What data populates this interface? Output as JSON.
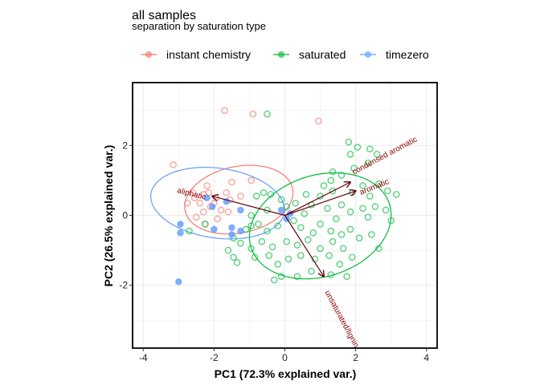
{
  "chart_data": {
    "type": "scatter",
    "title": "all samples",
    "subtitle": "separation by saturation type",
    "xlabel": "PC1 (72.3% explained var.)",
    "ylabel": "PC2 (26.5% explained var.)",
    "xlim": [
      -4.3,
      4.3
    ],
    "ylim": [
      -3.8,
      3.8
    ],
    "xticks": [
      -4,
      -2,
      0,
      2,
      4
    ],
    "yticks": [
      -2,
      0,
      2
    ],
    "grid": true,
    "legend_position": "top",
    "colors": {
      "instant chemistry": "#f8766d",
      "saturated": "#00ba38",
      "timezero": "#619cff",
      "arrows": "#67000d"
    },
    "series": [
      {
        "name": "instant chemistry",
        "color": "#f8766d",
        "ellipse": {
          "cx": -1.3,
          "cy": 0.45,
          "rx": 1.55,
          "ry": 0.95,
          "angle": 12
        },
        "points": [
          [
            -1.7,
            3.0
          ],
          [
            -0.9,
            2.9
          ],
          [
            0.95,
            2.7
          ],
          [
            -3.15,
            1.45
          ],
          [
            -2.2,
            0.85
          ],
          [
            -1.5,
            0.95
          ],
          [
            -1.25,
            0.55
          ],
          [
            -0.95,
            1.0
          ],
          [
            -2.15,
            0.65
          ],
          [
            -2.3,
            0.6
          ],
          [
            -2.55,
            0.5
          ],
          [
            -1.95,
            0.5
          ],
          [
            -1.55,
            0.45
          ],
          [
            -2.75,
            0.35
          ],
          [
            -2.4,
            0.35
          ],
          [
            -2.1,
            0.25
          ],
          [
            -1.8,
            0.15
          ],
          [
            -2.3,
            0.1
          ],
          [
            -2.5,
            -0.05
          ],
          [
            -1.9,
            -0.1
          ],
          [
            -2.25,
            -0.25
          ],
          [
            -1.6,
            0.1
          ],
          [
            -2.6,
            0.65
          ],
          [
            -2.0,
            0.35
          ],
          [
            -1.65,
            0.65
          ]
        ]
      },
      {
        "name": "saturated",
        "color": "#00ba38",
        "ellipse": {
          "cx": 1.0,
          "cy": -0.3,
          "rx": 2.05,
          "ry": 1.45,
          "angle": 18
        },
        "points": [
          [
            -0.5,
            2.9
          ],
          [
            1.8,
            2.1
          ],
          [
            2.05,
            1.95
          ],
          [
            2.4,
            1.9
          ],
          [
            1.85,
            1.75
          ],
          [
            1.95,
            1.35
          ],
          [
            2.35,
            1.5
          ],
          [
            2.6,
            1.75
          ],
          [
            1.35,
            1.25
          ],
          [
            1.6,
            1.15
          ],
          [
            1.3,
            1.0
          ],
          [
            1.1,
            0.85
          ],
          [
            2.2,
            0.85
          ],
          [
            2.65,
            0.9
          ],
          [
            1.35,
            0.7
          ],
          [
            0.6,
            0.6
          ],
          [
            1.0,
            0.55
          ],
          [
            1.9,
            0.65
          ],
          [
            2.4,
            0.55
          ],
          [
            2.9,
            0.7
          ],
          [
            3.15,
            0.6
          ],
          [
            2.55,
            0.25
          ],
          [
            2.2,
            0.2
          ],
          [
            1.6,
            0.3
          ],
          [
            1.2,
            0.2
          ],
          [
            0.3,
            0.35
          ],
          [
            0.75,
            0.3
          ],
          [
            1.85,
            0.1
          ],
          [
            2.35,
            -0.05
          ],
          [
            2.85,
            0.15
          ],
          [
            3.0,
            -0.15
          ],
          [
            -0.6,
            0.65
          ],
          [
            -0.8,
            0.55
          ],
          [
            -0.4,
            0.6
          ],
          [
            -0.1,
            0.45
          ],
          [
            0.05,
            0.25
          ],
          [
            -0.5,
            0.15
          ],
          [
            -0.95,
            0.0
          ],
          [
            -0.75,
            -0.25
          ],
          [
            -1.1,
            -0.4
          ],
          [
            -0.5,
            -0.45
          ],
          [
            -0.2,
            -0.3
          ],
          [
            0.25,
            -0.15
          ],
          [
            0.45,
            -0.35
          ],
          [
            0.8,
            -0.5
          ],
          [
            1.0,
            -0.25
          ],
          [
            1.3,
            -0.45
          ],
          [
            1.45,
            -0.1
          ],
          [
            1.6,
            -0.55
          ],
          [
            1.85,
            -0.4
          ],
          [
            2.1,
            -0.65
          ],
          [
            2.45,
            -0.55
          ],
          [
            2.65,
            -0.95
          ],
          [
            1.65,
            -0.95
          ],
          [
            1.35,
            -0.75
          ],
          [
            1.0,
            -0.95
          ],
          [
            0.65,
            -0.7
          ],
          [
            0.35,
            -0.85
          ],
          [
            0.05,
            -0.75
          ],
          [
            -0.35,
            -0.9
          ],
          [
            -0.65,
            -0.75
          ],
          [
            -0.95,
            -0.95
          ],
          [
            -1.25,
            -0.8
          ],
          [
            -1.45,
            -0.65
          ],
          [
            -1.6,
            -1.0
          ],
          [
            -1.35,
            -1.35
          ],
          [
            -0.85,
            -1.2
          ],
          [
            -0.45,
            -1.15
          ],
          [
            -0.2,
            -1.4
          ],
          [
            0.1,
            -1.25
          ],
          [
            0.45,
            -1.15
          ],
          [
            0.85,
            -1.25
          ],
          [
            1.25,
            -1.15
          ],
          [
            1.55,
            -1.4
          ],
          [
            1.9,
            -1.2
          ],
          [
            1.3,
            -1.7
          ],
          [
            1.75,
            -1.75
          ],
          [
            0.75,
            -1.6
          ],
          [
            0.35,
            -1.75
          ],
          [
            -0.1,
            -1.75
          ],
          [
            -0.3,
            -1.85
          ],
          [
            -1.45,
            -1.2
          ],
          [
            -2.7,
            -0.45
          ],
          [
            -2.25,
            -0.25
          ],
          [
            -0.95,
            -0.3
          ],
          [
            0.55,
            0.05
          ]
        ]
      },
      {
        "name": "timezero",
        "color": "#619cff",
        "ellipse": {
          "cx": -1.9,
          "cy": 0.35,
          "rx": 1.9,
          "ry": 1.0,
          "angle": -8
        },
        "points": [
          [
            -2.2,
            0.5
          ],
          [
            -1.65,
            0.4
          ],
          [
            -2.05,
            0.25
          ],
          [
            -1.25,
            0.15
          ],
          [
            -0.1,
            0.15
          ],
          [
            0.15,
            0.05
          ],
          [
            -1.5,
            -0.35
          ],
          [
            -2.0,
            -0.4
          ],
          [
            -1.5,
            -0.55
          ],
          [
            -2.95,
            -0.25
          ],
          [
            -2.95,
            -0.5
          ],
          [
            -3.0,
            -1.9
          ],
          [
            -1.25,
            -0.45
          ],
          [
            0.05,
            -0.1
          ]
        ]
      }
    ],
    "loadings": [
      {
        "label": "aliphatic",
        "x": -2.05,
        "y": 0.55
      },
      {
        "label": "condensed aromatic",
        "x": 1.85,
        "y": 0.95
      },
      {
        "label": "aromatic",
        "x": 2.0,
        "y": 0.7
      },
      {
        "label": "unsaturated/lignin",
        "x": 1.1,
        "y": -1.75
      }
    ],
    "loading_label_text": [
      {
        "label": "aliphatic",
        "x": -2.65,
        "y": 0.55,
        "rotate": 14
      },
      {
        "label": "condensed aromatic",
        "x": 2.85,
        "y": 1.65,
        "rotate": -28
      },
      {
        "label": "aromatic",
        "x": 2.55,
        "y": 0.75,
        "rotate": -22
      },
      {
        "label": "unsaturated/lignin",
        "x": 1.55,
        "y": -3.0,
        "rotate": 62
      }
    ]
  }
}
